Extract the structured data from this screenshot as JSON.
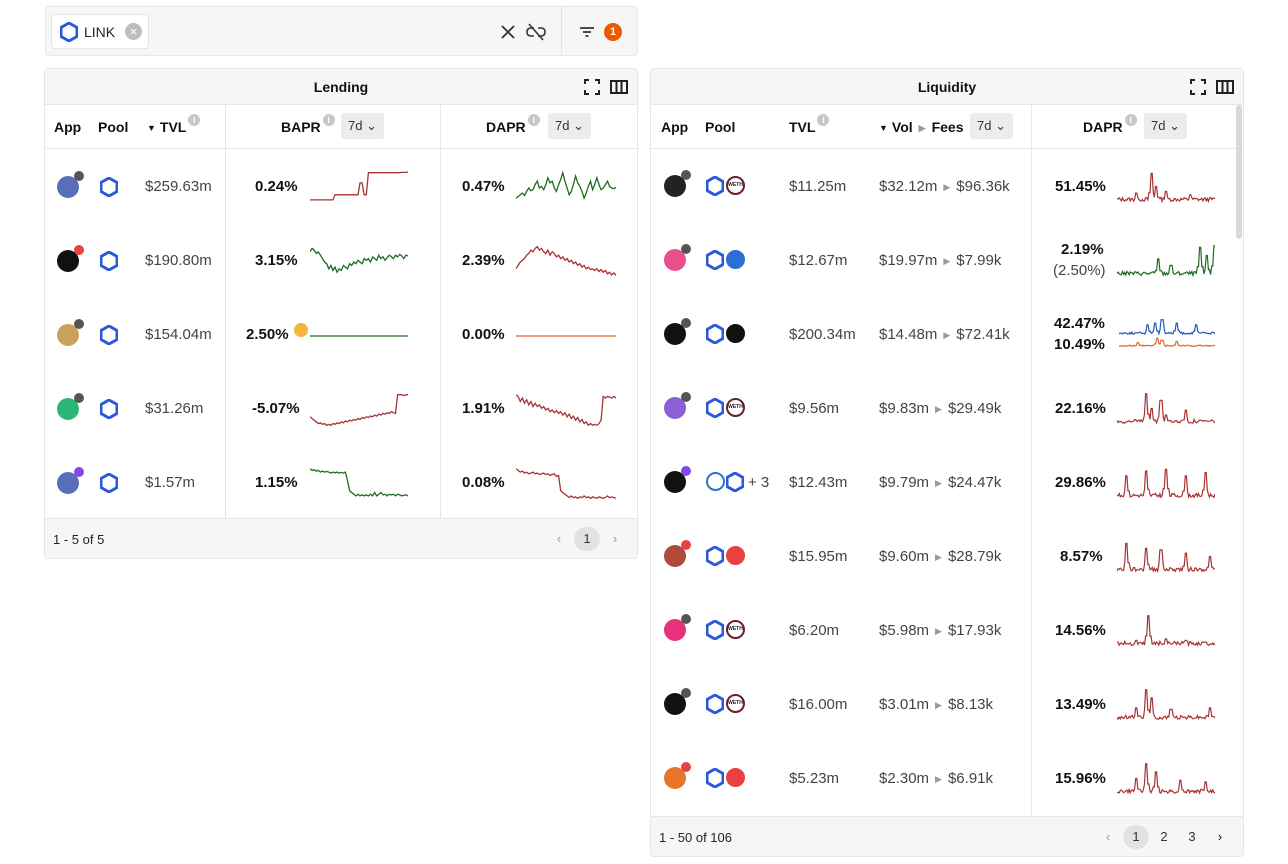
{
  "filter_bar": {
    "chip_label": "LINK",
    "filter_count": "1"
  },
  "lending": {
    "title": "Lending",
    "headers": {
      "app": "App",
      "pool": "Pool",
      "tvl": "TVL",
      "bapr": "BAPR",
      "bapr_period": "7d",
      "dapr": "DAPR",
      "dapr_period": "7d"
    },
    "rows": [
      {
        "tvl": "$259.63m",
        "bapr": "0.24%",
        "dapr": "0.47%",
        "app_color": "#5b6fb8",
        "bapr_color": "#a83232",
        "dapr_color": "#1f6b1f",
        "bapr_spark": [
          0.15,
          0.15,
          0.15,
          0.15,
          0.15,
          0.15,
          0.15,
          0.15,
          0.15,
          0.15,
          0.15,
          0.15,
          0.3,
          0.3,
          0.3,
          0.3,
          0.3,
          0.3,
          0.3,
          0.3,
          0.3,
          0.3,
          0.3,
          0.3,
          0.65,
          0.65,
          0.3,
          0.3,
          0.95,
          0.95,
          0.95,
          0.95,
          0.95,
          0.95,
          0.95,
          0.95,
          0.95,
          0.95,
          0.95,
          0.95,
          0.95,
          0.95,
          0.95,
          0.95,
          0.96,
          0.96,
          0.96,
          0.97
        ],
        "dapr_spark": [
          0.2,
          0.25,
          0.3,
          0.35,
          0.28,
          0.4,
          0.5,
          0.42,
          0.45,
          0.6,
          0.7,
          0.5,
          0.55,
          0.45,
          0.6,
          0.8,
          0.65,
          0.7,
          0.5,
          0.4,
          0.6,
          0.75,
          0.95,
          0.7,
          0.5,
          0.3,
          0.4,
          0.6,
          0.85,
          0.65,
          0.55,
          0.4,
          0.2,
          0.35,
          0.55,
          0.7,
          0.45,
          0.6,
          0.8,
          0.6,
          0.45,
          0.5,
          0.6,
          0.7,
          0.55,
          0.5,
          0.48,
          0.52
        ]
      },
      {
        "tvl": "$190.80m",
        "bapr": "3.15%",
        "dapr": "2.39%",
        "app_color": "#111111",
        "bapr_color": "#1f6b1f",
        "dapr_color": "#a83232",
        "bapr_spark": [
          0.8,
          0.9,
          0.85,
          0.75,
          0.8,
          0.7,
          0.6,
          0.5,
          0.45,
          0.3,
          0.4,
          0.25,
          0.35,
          0.2,
          0.3,
          0.25,
          0.4,
          0.35,
          0.3,
          0.45,
          0.4,
          0.5,
          0.45,
          0.55,
          0.5,
          0.45,
          0.6,
          0.55,
          0.6,
          0.5,
          0.65,
          0.6,
          0.55,
          0.7,
          0.6,
          0.65,
          0.55,
          0.62,
          0.7,
          0.66,
          0.6,
          0.7,
          0.65,
          0.72,
          0.68,
          0.6,
          0.7,
          0.68
        ],
        "dapr_spark": [
          0.3,
          0.4,
          0.5,
          0.55,
          0.6,
          0.7,
          0.75,
          0.85,
          0.8,
          0.9,
          0.95,
          0.85,
          0.9,
          0.8,
          0.75,
          0.85,
          0.7,
          0.8,
          0.75,
          0.65,
          0.7,
          0.6,
          0.65,
          0.55,
          0.6,
          0.5,
          0.55,
          0.45,
          0.5,
          0.4,
          0.45,
          0.35,
          0.4,
          0.3,
          0.35,
          0.28,
          0.3,
          0.25,
          0.3,
          0.22,
          0.28,
          0.2,
          0.25,
          0.15,
          0.2,
          0.12,
          0.18,
          0.1
        ]
      },
      {
        "tvl": "$154.04m",
        "bapr": "2.50%",
        "dapr": "0.00%",
        "app_color": "#c9a15a",
        "bapr_color": "#1f6b1f",
        "dapr_color": "#e0662a",
        "bapr_spark": [
          0.5,
          0.5,
          0.5,
          0.5,
          0.5,
          0.5,
          0.5,
          0.5,
          0.5,
          0.5,
          0.5,
          0.5
        ],
        "dapr_spark": [
          0.5,
          0.5,
          0.5,
          0.5,
          0.5,
          0.5,
          0.5,
          0.5,
          0.5,
          0.5,
          0.5,
          0.5
        ]
      },
      {
        "tvl": "$31.26m",
        "bapr": "-5.07%",
        "dapr": "1.91%",
        "app_color": "#2bb673",
        "bapr_color": "#a83232",
        "dapr_color": "#a83232",
        "bapr_spark": [
          0.3,
          0.25,
          0.2,
          0.15,
          0.1,
          0.12,
          0.08,
          0.1,
          0.05,
          0.08,
          0.05,
          0.1,
          0.08,
          0.12,
          0.1,
          0.15,
          0.12,
          0.18,
          0.15,
          0.2,
          0.18,
          0.22,
          0.2,
          0.25,
          0.22,
          0.28,
          0.25,
          0.3,
          0.28,
          0.32,
          0.3,
          0.35,
          0.32,
          0.38,
          0.35,
          0.4,
          0.38,
          0.42,
          0.4,
          0.45,
          0.42,
          0.4,
          0.95,
          0.95,
          0.95,
          0.92,
          0.95,
          0.95
        ],
        "dapr_spark": [
          0.95,
          0.9,
          0.75,
          0.85,
          0.7,
          0.8,
          0.65,
          0.75,
          0.6,
          0.7,
          0.6,
          0.65,
          0.55,
          0.6,
          0.5,
          0.55,
          0.45,
          0.5,
          0.42,
          0.48,
          0.4,
          0.45,
          0.35,
          0.42,
          0.3,
          0.38,
          0.25,
          0.32,
          0.2,
          0.28,
          0.15,
          0.22,
          0.1,
          0.15,
          0.05,
          0.1,
          0.05,
          0.08,
          0.05,
          0.1,
          0.2,
          0.9,
          0.85,
          0.9,
          0.88,
          0.85,
          0.9,
          0.85
        ]
      },
      {
        "tvl": "$1.57m",
        "bapr": "1.15%",
        "dapr": "0.08%",
        "app_color": "#5b6fb8",
        "bapr_color": "#1f6b1f",
        "dapr_color": "#a83232",
        "bapr_spark": [
          0.95,
          0.9,
          0.92,
          0.88,
          0.9,
          0.85,
          0.88,
          0.85,
          0.87,
          0.85,
          0.82,
          0.85,
          0.83,
          0.85,
          0.82,
          0.84,
          0.82,
          0.85,
          0.6,
          0.3,
          0.25,
          0.2,
          0.15,
          0.2,
          0.15,
          0.18,
          0.15,
          0.18,
          0.15,
          0.2,
          0.15,
          0.25,
          0.15,
          0.2,
          0.25,
          0.18,
          0.2,
          0.15,
          0.2,
          0.18,
          0.2,
          0.15,
          0.2,
          0.18,
          0.15,
          0.17,
          0.18,
          0.15
        ],
        "dapr_spark": [
          0.95,
          0.9,
          0.85,
          0.88,
          0.82,
          0.85,
          0.8,
          0.82,
          0.85,
          0.8,
          0.82,
          0.78,
          0.8,
          0.82,
          0.78,
          0.8,
          0.75,
          0.78,
          0.8,
          0.72,
          0.75,
          0.3,
          0.25,
          0.2,
          0.15,
          0.1,
          0.15,
          0.1,
          0.12,
          0.08,
          0.12,
          0.1,
          0.15,
          0.1,
          0.12,
          0.08,
          0.12,
          0.1,
          0.08,
          0.12,
          0.1,
          0.08,
          0.1,
          0.15,
          0.1,
          0.12,
          0.1,
          0.08
        ]
      }
    ],
    "footer": {
      "range": "1 - 5 of 5",
      "page": "1"
    }
  },
  "liquidity": {
    "title": "Liquidity",
    "headers": {
      "app": "App",
      "pool": "Pool",
      "tvl": "TVL",
      "vol": "Vol",
      "fees": "Fees",
      "vol_period": "7d",
      "dapr": "DAPR",
      "dapr_period": "7d"
    },
    "rows": [
      {
        "tvl": "$11.25m",
        "vol": "$32.12m",
        "fees": "$96.36k",
        "dapr": "51.45%",
        "dapr2": "",
        "app_color": "#222222",
        "token2": "WETH",
        "token2_color": "#ffffff",
        "extra": "",
        "spark_color": "#a83232",
        "spark2_color": "",
        "peaks": [
          [
            0.35,
            0.9
          ],
          [
            0.4,
            0.5
          ],
          [
            0.2,
            0.3
          ],
          [
            0.5,
            0.35
          ],
          [
            0.75,
            0.25
          ]
        ]
      },
      {
        "tvl": "$12.67m",
        "vol": "$19.97m",
        "fees": "$7.99k",
        "dapr": "2.19%",
        "dapr2": "(2.50%)",
        "app_color": "#e84f8c",
        "token2": "",
        "token2_color": "#2b6fd6",
        "extra": "",
        "spark_color": "#1f6b1f",
        "spark2_color": "",
        "peaks": [
          [
            0.42,
            0.55
          ],
          [
            0.55,
            0.35
          ],
          [
            0.85,
            0.9
          ],
          [
            0.92,
            0.65
          ],
          [
            0.99,
            0.95
          ]
        ]
      },
      {
        "tvl": "$200.34m",
        "vol": "$14.48m",
        "fees": "$72.41k",
        "dapr": "42.47%",
        "dapr2": "10.49%",
        "app_color": "#111111",
        "token2": "",
        "token2_color": "#111111",
        "extra": "",
        "spark_color": "#2358b5",
        "spark2_color": "#e0662a",
        "peaks": [
          [
            0.3,
            0.6
          ],
          [
            0.38,
            0.7
          ],
          [
            0.45,
            0.9
          ],
          [
            0.6,
            0.7
          ],
          [
            0.8,
            0.6
          ]
        ]
      },
      {
        "tvl": "$9.56m",
        "vol": "$9.83m",
        "fees": "$29.49k",
        "dapr": "22.16%",
        "dapr2": "",
        "app_color": "#8c5fd6",
        "token2": "WETH",
        "token2_color": "#ffffff",
        "extra": "",
        "spark_color": "#a83232",
        "spark2_color": "",
        "peaks": [
          [
            0.3,
            0.95
          ],
          [
            0.35,
            0.5
          ],
          [
            0.45,
            0.75
          ],
          [
            0.5,
            0.3
          ],
          [
            0.7,
            0.45
          ]
        ]
      },
      {
        "tvl": "$12.43m",
        "vol": "$9.79m",
        "fees": "$24.47k",
        "dapr": "29.86%",
        "dapr2": "",
        "app_color": "#111111",
        "token2": "",
        "token2_color": "#2b6fd6",
        "extra": "+ 3",
        "spark_color": "#a83232",
        "spark2_color": "",
        "peaks": [
          [
            0.1,
            0.7
          ],
          [
            0.3,
            0.85
          ],
          [
            0.5,
            0.9
          ],
          [
            0.7,
            0.7
          ],
          [
            0.9,
            0.8
          ]
        ]
      },
      {
        "tvl": "$15.95m",
        "vol": "$9.60m",
        "fees": "$28.79k",
        "dapr": "8.57%",
        "dapr2": "",
        "app_color": "#b04b3a",
        "token2": "",
        "token2_color": "#e84142",
        "extra": "",
        "spark_color": "#a83232",
        "spark2_color": "",
        "peaks": [
          [
            0.1,
            0.9
          ],
          [
            0.3,
            0.75
          ],
          [
            0.45,
            0.7
          ],
          [
            0.7,
            0.6
          ],
          [
            0.95,
            0.5
          ]
        ]
      },
      {
        "tvl": "$6.20m",
        "vol": "$5.98m",
        "fees": "$17.93k",
        "dapr": "14.56%",
        "dapr2": "",
        "app_color": "#e8307c",
        "token2": "WETH",
        "token2_color": "#ffffff",
        "extra": "",
        "spark_color": "#a83232",
        "spark2_color": "",
        "peaks": [
          [
            0.32,
            0.95
          ],
          [
            0.2,
            0.2
          ],
          [
            0.5,
            0.25
          ],
          [
            0.7,
            0.2
          ],
          [
            0.9,
            0.15
          ]
        ]
      },
      {
        "tvl": "$16.00m",
        "vol": "$3.01m",
        "fees": "$8.13k",
        "dapr": "13.49%",
        "dapr2": "",
        "app_color": "#111111",
        "token2": "WETH",
        "token2_color": "#ffffff",
        "extra": "",
        "spark_color": "#a83232",
        "spark2_color": "",
        "peaks": [
          [
            0.3,
            0.95
          ],
          [
            0.35,
            0.7
          ],
          [
            0.2,
            0.4
          ],
          [
            0.55,
            0.35
          ],
          [
            0.95,
            0.4
          ]
        ]
      },
      {
        "tvl": "$5.23m",
        "vol": "$2.30m",
        "fees": "$6.91k",
        "dapr": "15.96%",
        "dapr2": "",
        "app_color": "#e8742a",
        "token2": "",
        "token2_color": "#e84142",
        "extra": "",
        "spark_color": "#a83232",
        "spark2_color": "",
        "peaks": [
          [
            0.3,
            0.95
          ],
          [
            0.4,
            0.7
          ],
          [
            0.2,
            0.5
          ],
          [
            0.65,
            0.45
          ],
          [
            0.9,
            0.4
          ]
        ]
      }
    ],
    "footer": {
      "range": "1 - 50 of 106",
      "pages": [
        "1",
        "2",
        "3"
      ]
    }
  }
}
